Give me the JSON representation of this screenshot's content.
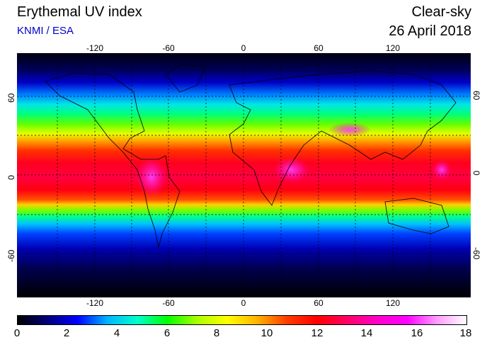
{
  "header": {
    "title": "Erythemal UV index",
    "subtitle": "KNMI / ESA",
    "condition": "Clear-sky",
    "date": "26 April 2018"
  },
  "map": {
    "projection": "equirectangular",
    "lon_ticks": [
      "-120",
      "-60",
      "0",
      "60",
      "120"
    ],
    "lat_ticks": [
      "60",
      "0",
      "-60"
    ],
    "gridlines": "dotted",
    "coastlines": true
  },
  "colorbar": {
    "min": 0,
    "max": 18,
    "tick_labels": [
      "0",
      "2",
      "4",
      "6",
      "8",
      "10",
      "12",
      "14",
      "16",
      "18"
    ],
    "colors": [
      "#000000",
      "#00007a",
      "#0000ff",
      "#00b4ff",
      "#00ffcc",
      "#00ff00",
      "#aaff00",
      "#ffff00",
      "#ffb400",
      "#ff3c00",
      "#ff0000",
      "#ff0064",
      "#ff00c8",
      "#ff00ff",
      "#ff99ff",
      "#ffffff"
    ]
  }
}
